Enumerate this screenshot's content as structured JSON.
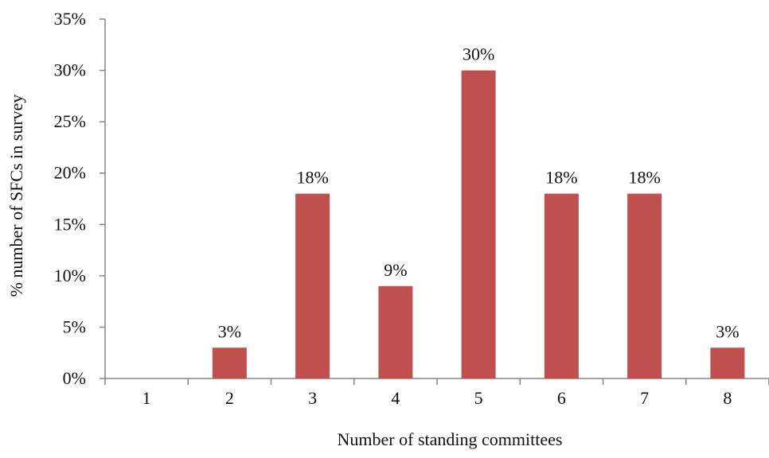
{
  "chart_data": {
    "type": "bar",
    "title": "",
    "xlabel": "Number of standing committees",
    "ylabel": "% number of SFCs in survey",
    "categories": [
      "1",
      "2",
      "3",
      "4",
      "5",
      "6",
      "7",
      "8"
    ],
    "values": [
      0,
      3,
      18,
      9,
      30,
      18,
      18,
      3
    ],
    "data_labels": [
      "",
      "3%",
      "18%",
      "9%",
      "30%",
      "18%",
      "18%",
      "3%"
    ],
    "y_ticks": [
      "0%",
      "5%",
      "10%",
      "15%",
      "20%",
      "25%",
      "30%",
      "35%"
    ],
    "ylim": [
      0,
      35
    ],
    "grid": false,
    "legend": "none",
    "colors": {
      "bar": "#c0504d",
      "axis": "#868686",
      "text": "#111111"
    }
  }
}
